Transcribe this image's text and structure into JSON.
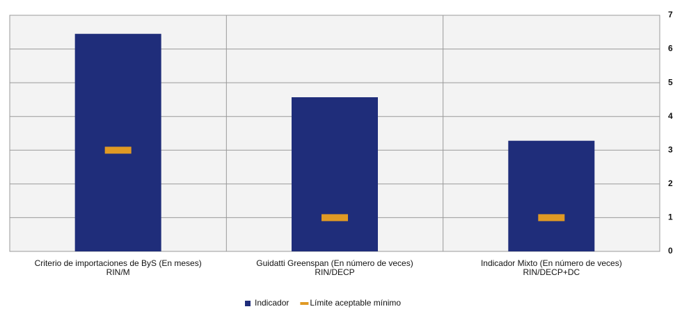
{
  "chart_data": {
    "type": "bar",
    "categories": [
      [
        "Criterio de importaciones de ByS (En meses)",
        "RIN/M"
      ],
      [
        "Guidatti Greenspan (En número de veces)",
        "RIN/DECP"
      ],
      [
        "Indicador Mixto (En número de veces)",
        "RIN/DECP+DC"
      ]
    ],
    "series": [
      {
        "name": "Indicador",
        "color": "#1f2d7a",
        "style": "bar",
        "values": [
          6.45,
          4.57,
          3.28
        ]
      },
      {
        "name": "Límite aceptable mínimo",
        "color": "#e09a24",
        "style": "dash",
        "values": [
          3,
          1,
          1
        ]
      }
    ],
    "ylim": [
      0,
      7
    ],
    "yticks": [
      0,
      1,
      2,
      3,
      4,
      5,
      6,
      7
    ],
    "y_axis_side": "right",
    "grid": true,
    "legend": "bottom"
  }
}
